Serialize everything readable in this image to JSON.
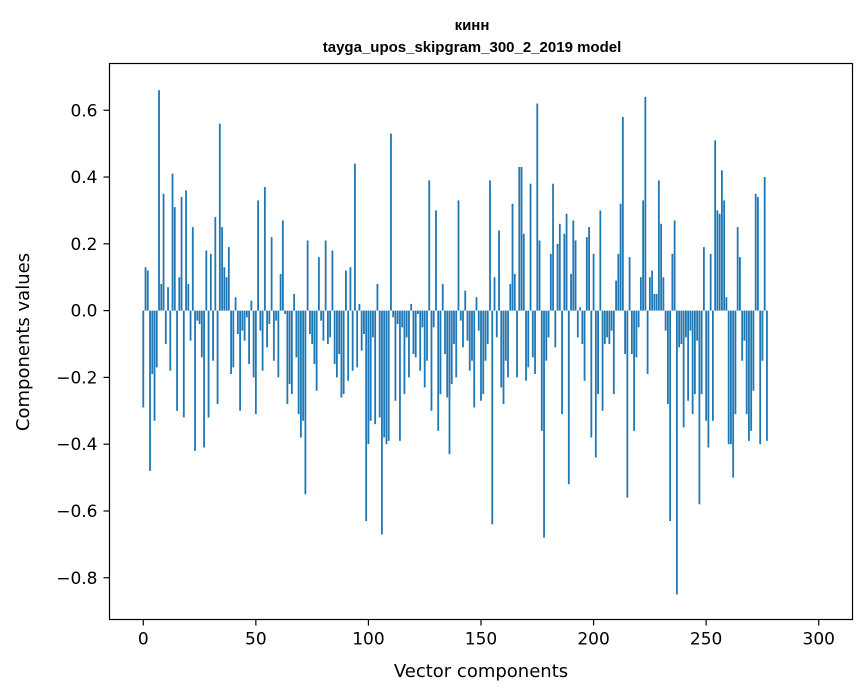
{
  "chart_data": {
    "type": "bar",
    "title": "кинн",
    "subtitle": "tayga_upos_skipgram_300_2_2019 model",
    "xlabel": "Vector components",
    "ylabel": "Components values",
    "xlim": [
      -15,
      315
    ],
    "ylim": [
      -0.925,
      0.74
    ],
    "xticks": [
      0,
      50,
      100,
      150,
      200,
      250,
      300
    ],
    "yticks": [
      0.6,
      0.4,
      0.2,
      0.0,
      -0.2,
      -0.4,
      -0.6,
      -0.8
    ],
    "ytick_labels": [
      "0.6",
      "0.4",
      "0.2",
      "0.0",
      "−0.2",
      "−0.4",
      "−0.6",
      "−0.8"
    ],
    "bar_color": "#1f77b4",
    "values": [
      -0.29,
      0.13,
      0.12,
      -0.48,
      -0.19,
      -0.33,
      -0.17,
      0.66,
      0.08,
      0.35,
      -0.1,
      0.07,
      -0.18,
      0.41,
      0.31,
      -0.3,
      0.1,
      0.34,
      -0.32,
      0.36,
      0.08,
      -0.09,
      0.25,
      -0.42,
      -0.03,
      -0.04,
      -0.14,
      -0.41,
      0.18,
      -0.32,
      0.17,
      -0.15,
      0.28,
      -0.28,
      0.56,
      0.25,
      0.13,
      0.1,
      0.19,
      -0.19,
      -0.17,
      0.04,
      -0.07,
      -0.3,
      -0.06,
      -0.09,
      -0.02,
      -0.16,
      0.03,
      -0.2,
      -0.31,
      0.33,
      -0.06,
      -0.18,
      0.37,
      -0.11,
      -0.04,
      0.22,
      -0.15,
      -0.03,
      -0.2,
      0.11,
      0.27,
      -0.01,
      -0.28,
      -0.22,
      -0.25,
      0.05,
      -0.14,
      -0.31,
      -0.38,
      -0.33,
      -0.55,
      0.21,
      -0.07,
      -0.1,
      -0.16,
      -0.24,
      0.16,
      -0.03,
      -0.09,
      0.21,
      -0.1,
      -0.08,
      0.18,
      -0.16,
      -0.2,
      -0.13,
      -0.26,
      -0.25,
      0.12,
      -0.21,
      0.13,
      -0.18,
      0.44,
      -0.17,
      0.02,
      -0.12,
      -0.07,
      -0.63,
      -0.4,
      -0.33,
      -0.08,
      -0.34,
      0.08,
      -0.32,
      -0.67,
      -0.38,
      -0.4,
      -0.39,
      0.53,
      -0.02,
      -0.27,
      -0.04,
      -0.39,
      -0.05,
      -0.25,
      -0.08,
      -0.2,
      0.02,
      -0.13,
      -0.14,
      -0.01,
      -0.18,
      -0.05,
      -0.23,
      -0.15,
      0.39,
      -0.3,
      -0.05,
      0.3,
      -0.36,
      -0.25,
      0.08,
      -0.13,
      -0.26,
      -0.43,
      -0.22,
      -0.1,
      -0.2,
      0.33,
      -0.03,
      -0.11,
      0.06,
      -0.09,
      -0.18,
      -0.15,
      -0.29,
      0.04,
      -0.06,
      -0.27,
      -0.25,
      -0.15,
      -0.1,
      0.39,
      -0.64,
      0.1,
      -0.08,
      0.24,
      -0.23,
      -0.28,
      -0.15,
      -0.2,
      0.08,
      0.32,
      0.11,
      -0.2,
      0.43,
      0.43,
      0.23,
      -0.21,
      -0.17,
      0.38,
      -0.14,
      -0.19,
      0.62,
      0.21,
      -0.36,
      -0.68,
      -0.15,
      -0.08,
      0.17,
      0.38,
      -0.11,
      0.2,
      0.26,
      -0.31,
      0.23,
      0.29,
      -0.52,
      0.11,
      0.27,
      0.21,
      -0.08,
      0.01,
      -0.1,
      -0.21,
      0.22,
      0.25,
      -0.38,
      0.17,
      -0.44,
      -0.25,
      0.3,
      -0.3,
      -0.1,
      -0.08,
      -0.1,
      -0.06,
      -0.25,
      0.09,
      0.17,
      0.32,
      0.58,
      -0.13,
      -0.56,
      0.16,
      -0.13,
      -0.36,
      -0.14,
      -0.05,
      0.1,
      0.33,
      0.64,
      -0.19,
      0.1,
      0.12,
      0.05,
      0.05,
      0.39,
      0.26,
      0.1,
      -0.06,
      -0.28,
      -0.63,
      0.17,
      0.27,
      -0.85,
      -0.11,
      -0.1,
      -0.35,
      -0.08,
      -0.27,
      -0.06,
      -0.31,
      -0.25,
      -0.09,
      -0.58,
      -0.25,
      0.19,
      -0.33,
      -0.41,
      0.17,
      -0.33,
      0.51,
      0.3,
      0.29,
      0.42,
      0.33,
      0.04,
      -0.4,
      -0.4,
      -0.5,
      -0.31,
      0.25,
      0.16,
      -0.15,
      -0.09,
      -0.31,
      -0.39,
      -0.36,
      -0.24,
      0.35,
      0.34,
      -0.4,
      -0.15,
      0.4,
      -0.39
    ]
  }
}
